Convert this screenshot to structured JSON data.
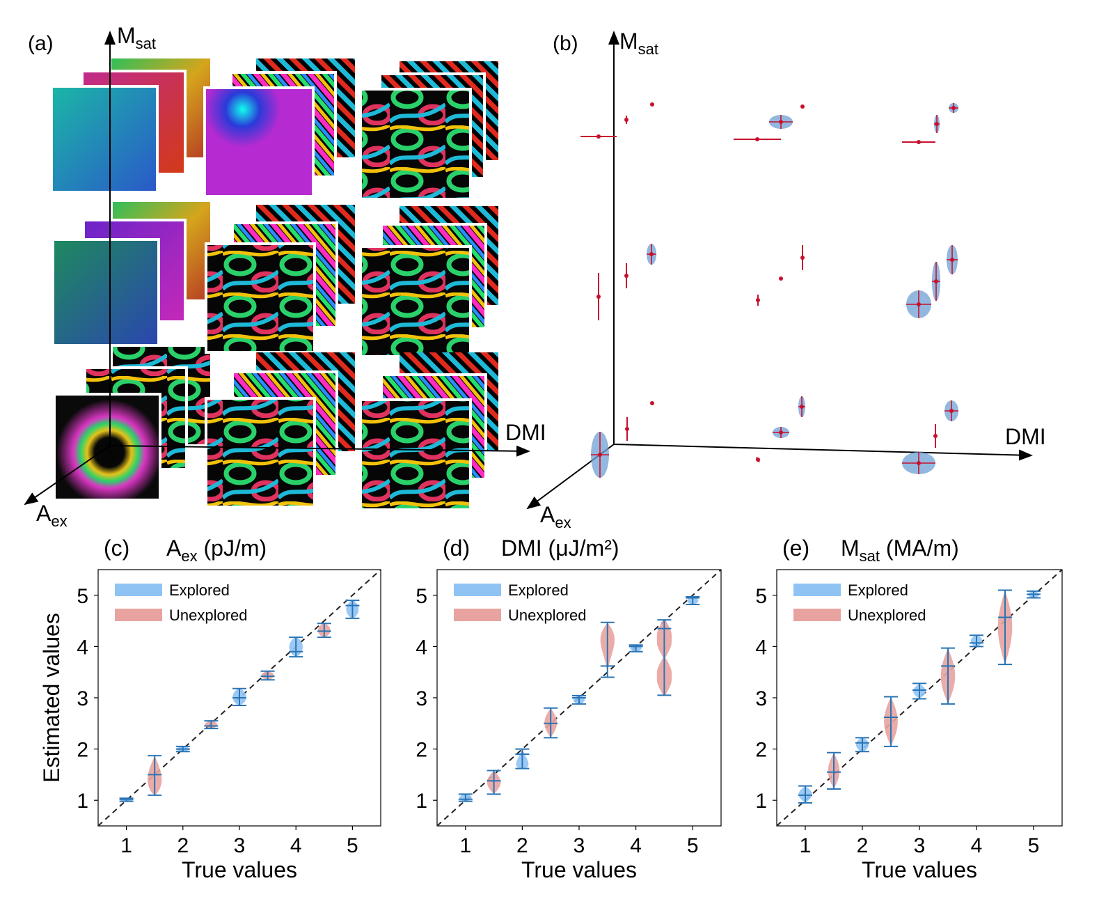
{
  "colors": {
    "explored": "#8fc3f4",
    "unexplored": "#e8a3a0",
    "errorbar": "#2a74b5",
    "red_marker": "#c8102e",
    "ellipse": "#6fa0d4",
    "dashed": "#222222"
  },
  "panel_a": {
    "letter": "(a)",
    "axes": {
      "z": "M",
      "z_sub": "sat",
      "x": "DMI",
      "y": "A",
      "y_sub": "ex"
    },
    "grid_note": "3x3 grid of stacked simulated magnetization textures (colour-encoded spin directions), 3 layers deep"
  },
  "panel_b": {
    "letter": "(b)",
    "axes": {
      "z": "M",
      "z_sub": "sat",
      "x": "DMI",
      "y": "A",
      "y_sub": "ex"
    }
  },
  "chart_data": [
    {
      "type": "violin",
      "panel": "(c)",
      "title_main": "A",
      "title_sub": "ex",
      "title_rest": " (pJ/m)",
      "xlabel": "True values",
      "ylabel": "Estimated values",
      "xticks": [
        "1",
        "2",
        "3",
        "4",
        "5"
      ],
      "yticks": [
        "1",
        "2",
        "3",
        "4",
        "5"
      ],
      "xlim": [
        0.5,
        5.5
      ],
      "ylim": [
        0.5,
        5.5
      ],
      "reference_line": "y = x (dashed)",
      "legend": [
        "Explored",
        "Unexplored"
      ],
      "legend_position": "upper-left",
      "series": [
        {
          "x": 1.0,
          "group": "Explored",
          "median": 1.02,
          "min": 0.98,
          "max": 1.04,
          "width": 0.22,
          "shape": "flat"
        },
        {
          "x": 1.5,
          "group": "Unexplored",
          "median": 1.5,
          "min": 1.1,
          "max": 1.87,
          "width": 0.25,
          "shape": "bulb-up"
        },
        {
          "x": 2.0,
          "group": "Explored",
          "median": 2.0,
          "min": 1.95,
          "max": 2.05,
          "width": 0.23,
          "shape": "flat"
        },
        {
          "x": 2.5,
          "group": "Unexplored",
          "median": 2.45,
          "min": 2.4,
          "max": 2.55,
          "width": 0.22,
          "shape": "flat"
        },
        {
          "x": 3.0,
          "group": "Explored",
          "median": 3.0,
          "min": 2.85,
          "max": 3.18,
          "width": 0.24,
          "shape": "flat"
        },
        {
          "x": 3.5,
          "group": "Unexplored",
          "median": 3.42,
          "min": 3.35,
          "max": 3.52,
          "width": 0.22,
          "shape": "flat"
        },
        {
          "x": 4.0,
          "group": "Explored",
          "median": 3.9,
          "min": 3.8,
          "max": 4.18,
          "width": 0.24,
          "shape": "flat"
        },
        {
          "x": 4.5,
          "group": "Unexplored",
          "median": 4.3,
          "min": 4.18,
          "max": 4.45,
          "width": 0.22,
          "shape": "flat"
        },
        {
          "x": 5.0,
          "group": "Explored",
          "median": 4.8,
          "min": 4.55,
          "max": 4.9,
          "width": 0.22,
          "shape": "flat"
        }
      ]
    },
    {
      "type": "violin",
      "panel": "(d)",
      "title_main": "DMI",
      "title_sub": "",
      "title_rest": " (μJ/m²)",
      "xlabel": "True values",
      "ylabel": "",
      "xticks": [
        "1",
        "2",
        "3",
        "4",
        "5"
      ],
      "yticks": [
        "1",
        "2",
        "3",
        "4",
        "5"
      ],
      "xlim": [
        0.5,
        5.5
      ],
      "ylim": [
        0.5,
        5.5
      ],
      "reference_line": "y = x (dashed)",
      "legend": [
        "Explored",
        "Unexplored"
      ],
      "legend_position": "upper-left",
      "series": [
        {
          "x": 1.0,
          "group": "Explored",
          "median": 1.02,
          "min": 0.98,
          "max": 1.12,
          "width": 0.22,
          "shape": "flat"
        },
        {
          "x": 1.5,
          "group": "Unexplored",
          "median": 1.38,
          "min": 1.12,
          "max": 1.58,
          "width": 0.24,
          "shape": "bulb"
        },
        {
          "x": 2.0,
          "group": "Explored",
          "median": 1.9,
          "min": 1.62,
          "max": 2.0,
          "width": 0.22,
          "shape": "top"
        },
        {
          "x": 2.5,
          "group": "Unexplored",
          "median": 2.5,
          "min": 2.22,
          "max": 2.8,
          "width": 0.22,
          "shape": "bulb"
        },
        {
          "x": 3.0,
          "group": "Explored",
          "median": 3.0,
          "min": 2.88,
          "max": 3.04,
          "width": 0.2,
          "shape": "flat"
        },
        {
          "x": 3.5,
          "group": "Unexplored",
          "median": 3.62,
          "min": 3.4,
          "max": 4.47,
          "width": 0.25,
          "shape": "bulb-low"
        },
        {
          "x": 4.0,
          "group": "Explored",
          "median": 4.0,
          "min": 3.9,
          "max": 4.03,
          "width": 0.2,
          "shape": "flat"
        },
        {
          "x": 4.5,
          "group": "Unexplored",
          "median": 4.35,
          "min": 3.05,
          "max": 4.52,
          "width": 0.26,
          "shape": "hourglass"
        },
        {
          "x": 5.0,
          "group": "Explored",
          "median": 4.95,
          "min": 4.82,
          "max": 4.97,
          "width": 0.2,
          "shape": "flat"
        }
      ]
    },
    {
      "type": "violin",
      "panel": "(e)",
      "title_main": "M",
      "title_sub": "sat",
      "title_rest": " (MA/m)",
      "xlabel": "True values",
      "ylabel": "",
      "xticks": [
        "1",
        "2",
        "3",
        "4",
        "5"
      ],
      "yticks": [
        "1",
        "2",
        "3",
        "4",
        "5"
      ],
      "xlim": [
        0.5,
        5.5
      ],
      "ylim": [
        0.5,
        5.5
      ],
      "reference_line": "y = x (dashed)",
      "legend": [
        "Explored",
        "Unexplored"
      ],
      "legend_position": "upper-left",
      "series": [
        {
          "x": 1.0,
          "group": "Explored",
          "median": 1.1,
          "min": 0.95,
          "max": 1.28,
          "width": 0.24,
          "shape": "bulb"
        },
        {
          "x": 1.5,
          "group": "Unexplored",
          "median": 1.55,
          "min": 1.22,
          "max": 1.93,
          "width": 0.2,
          "shape": "bulb"
        },
        {
          "x": 2.0,
          "group": "Explored",
          "median": 2.12,
          "min": 1.95,
          "max": 2.22,
          "width": 0.22,
          "shape": "flat"
        },
        {
          "x": 2.5,
          "group": "Unexplored",
          "median": 2.62,
          "min": 2.05,
          "max": 3.02,
          "width": 0.24,
          "shape": "bulb"
        },
        {
          "x": 3.0,
          "group": "Explored",
          "median": 3.15,
          "min": 2.98,
          "max": 3.28,
          "width": 0.22,
          "shape": "bulb"
        },
        {
          "x": 3.5,
          "group": "Unexplored",
          "median": 3.62,
          "min": 2.88,
          "max": 3.97,
          "width": 0.25,
          "shape": "bulb"
        },
        {
          "x": 4.0,
          "group": "Explored",
          "median": 4.07,
          "min": 4.0,
          "max": 4.22,
          "width": 0.2,
          "shape": "flat"
        },
        {
          "x": 4.5,
          "group": "Unexplored",
          "median": 4.57,
          "min": 3.65,
          "max": 5.1,
          "width": 0.25,
          "shape": "bulb"
        },
        {
          "x": 5.0,
          "group": "Explored",
          "median": 5.02,
          "min": 4.95,
          "max": 5.08,
          "width": 0.2,
          "shape": "flat"
        }
      ]
    }
  ]
}
